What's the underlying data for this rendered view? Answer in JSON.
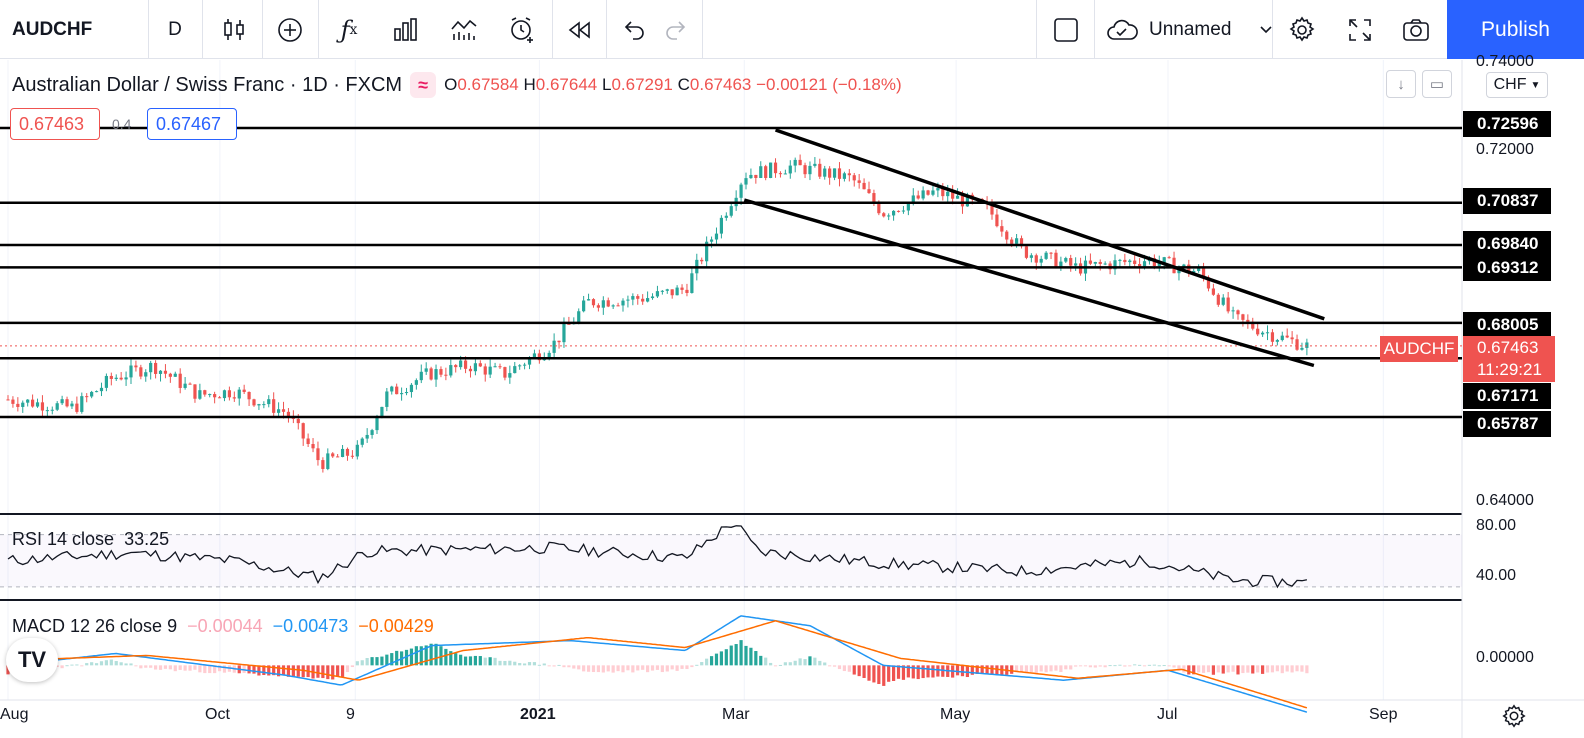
{
  "toolbar": {
    "symbol": "AUDCHF",
    "interval": "D",
    "layout_name": "Unnamed",
    "publish_label": "Publish",
    "icons": [
      "candles-icon",
      "add-indicator-icon",
      "fx-icon",
      "compare-icon",
      "templates-icon",
      "alert-icon",
      "replay-icon",
      "undo-icon",
      "redo-icon",
      "rectangle-icon",
      "cloud-icon",
      "chevron-down-icon",
      "settings-icon",
      "fullscreen-icon",
      "camera-icon"
    ]
  },
  "legend": {
    "title": "Australian Dollar / Swiss Franc · 1D · FXCM",
    "o_label": "O",
    "o": "0.67584",
    "h_label": "H",
    "h": "0.67644",
    "l_label": "L",
    "l": "0.67291",
    "c_label": "C",
    "c": "0.67463",
    "change": "−0.00121 (−0.18%)",
    "sell_price": "0.67463",
    "spread": "0.4",
    "buy_price": "0.67467"
  },
  "indicators": {
    "rsi_label": "RSI 14 close",
    "rsi_value": "33.25",
    "macd_label": "MACD 12 26 close 9",
    "macd_hist": "−0.00044",
    "macd_line": "−0.00473",
    "macd_signal": "−0.00429"
  },
  "price_axis": {
    "currency": "CHF",
    "labels": [
      "0.74000",
      "0.72000",
      "0.64000"
    ],
    "rsi_labels": [
      "80.00",
      "40.00"
    ],
    "macd_labels": [
      "0.00000"
    ],
    "level_tags": [
      "0.72596",
      "0.70837",
      "0.69840",
      "0.69312",
      "0.68005",
      "0.67171",
      "0.65787"
    ],
    "current_symbol": "AUDCHF",
    "current_price": "0.67463",
    "countdown": "11:29:21"
  },
  "time_axis": [
    "Aug",
    "Oct",
    "9",
    "2021",
    "Mar",
    "May",
    "Jul",
    "Sep"
  ],
  "colors": {
    "up": "#26a69a",
    "down": "#ef5350",
    "accent": "#2962ff",
    "macd": "#2196f3",
    "signal": "#ff6d00"
  },
  "chart_data": {
    "type": "candlestick",
    "symbol": "AUDCHF",
    "interval": "1D",
    "ylim": [
      0.635,
      0.742
    ],
    "horizontal_levels": [
      0.72596,
      0.70837,
      0.6984,
      0.69312,
      0.68005,
      0.67171,
      0.65787
    ],
    "channel_upper": [
      [
        "2021-03-10",
        0.7255
      ],
      [
        "2021-08-15",
        0.681
      ]
    ],
    "channel_lower": [
      [
        "2021-03-01",
        0.709
      ],
      [
        "2021-08-12",
        0.67
      ]
    ],
    "close_path": [
      [
        "2020-08-01",
        0.662
      ],
      [
        "2020-08-20",
        0.66
      ],
      [
        "2020-08-31",
        0.667
      ],
      [
        "2020-09-12",
        0.67
      ],
      [
        "2020-09-25",
        0.663
      ],
      [
        "2020-10-05",
        0.664
      ],
      [
        "2020-10-20",
        0.659
      ],
      [
        "2020-10-30",
        0.647
      ],
      [
        "2020-11-10",
        0.65
      ],
      [
        "2020-11-18",
        0.663
      ],
      [
        "2020-11-30",
        0.668
      ],
      [
        "2020-12-12",
        0.67
      ],
      [
        "2020-12-22",
        0.668
      ],
      [
        "2021-01-05",
        0.675
      ],
      [
        "2021-01-15",
        0.685
      ],
      [
        "2021-02-01",
        0.686
      ],
      [
        "2021-02-12",
        0.688
      ],
      [
        "2021-02-24",
        0.707
      ],
      [
        "2021-03-01",
        0.715
      ],
      [
        "2021-03-15",
        0.717
      ],
      [
        "2021-04-01",
        0.714
      ],
      [
        "2021-04-10",
        0.706
      ],
      [
        "2021-04-25",
        0.711
      ],
      [
        "2021-05-10",
        0.707
      ],
      [
        "2021-05-20",
        0.697
      ],
      [
        "2021-06-05",
        0.693
      ],
      [
        "2021-06-25",
        0.695
      ],
      [
        "2021-07-10",
        0.692
      ],
      [
        "2021-07-20",
        0.681
      ],
      [
        "2021-08-01",
        0.677
      ],
      [
        "2021-08-10",
        0.6746
      ]
    ],
    "rsi_ylim": [
      20,
      85
    ],
    "rsi_path": [
      [
        "2020-08-01",
        50
      ],
      [
        "2020-09-05",
        56
      ],
      [
        "2020-10-05",
        50
      ],
      [
        "2020-10-30",
        37
      ],
      [
        "2020-11-12",
        57
      ],
      [
        "2021-01-05",
        60
      ],
      [
        "2021-02-12",
        52
      ],
      [
        "2021-02-26",
        80
      ],
      [
        "2021-03-05",
        57
      ],
      [
        "2021-04-10",
        48
      ],
      [
        "2021-05-20",
        42
      ],
      [
        "2021-06-25",
        50
      ],
      [
        "2021-07-20",
        35
      ],
      [
        "2021-08-10",
        33.25
      ]
    ],
    "macd_ylim": [
      -0.0035,
      0.0065
    ],
    "macd_path": [
      [
        "2020-08-01",
        0.0
      ],
      [
        "2020-09-01",
        0.0012
      ],
      [
        "2020-10-20",
        -0.001
      ],
      [
        "2020-11-05",
        -0.002
      ],
      [
        "2020-12-01",
        0.002
      ],
      [
        "2021-01-10",
        0.0025
      ],
      [
        "2021-02-12",
        0.0015
      ],
      [
        "2021-02-28",
        0.005
      ],
      [
        "2021-03-20",
        0.004
      ],
      [
        "2021-04-10",
        0.0
      ],
      [
        "2021-06-01",
        -0.0015
      ],
      [
        "2021-07-01",
        -0.0005
      ],
      [
        "2021-08-10",
        -0.00473
      ]
    ],
    "signal_path": [
      [
        "2020-08-01",
        0.0005
      ],
      [
        "2020-09-10",
        0.001
      ],
      [
        "2020-10-25",
        -0.0005
      ],
      [
        "2020-11-10",
        -0.0015
      ],
      [
        "2020-12-10",
        0.0015
      ],
      [
        "2021-01-15",
        0.0028
      ],
      [
        "2021-02-12",
        0.0018
      ],
      [
        "2021-03-10",
        0.0045
      ],
      [
        "2021-04-15",
        0.0007
      ],
      [
        "2021-06-05",
        -0.0013
      ],
      [
        "2021-07-05",
        -0.0004
      ],
      [
        "2021-08-10",
        -0.00429
      ]
    ]
  }
}
